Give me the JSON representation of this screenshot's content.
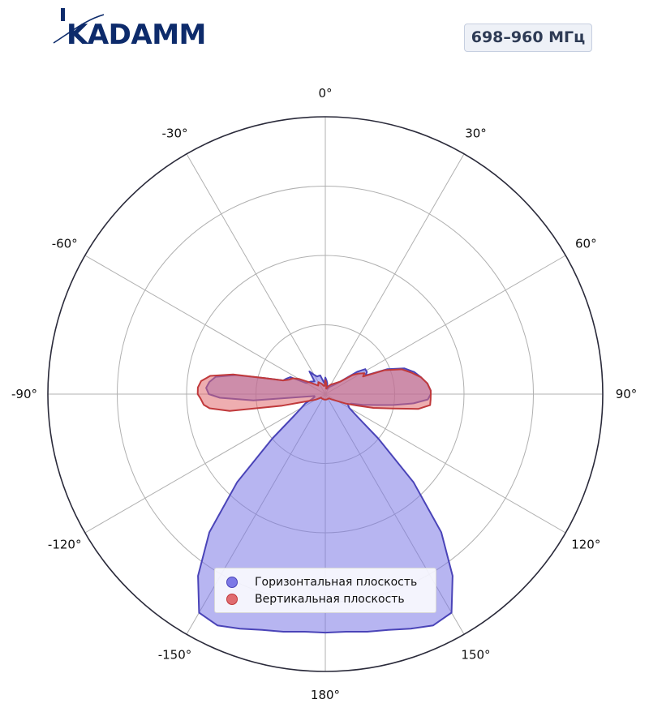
{
  "brand": {
    "logo_text": "KADAMM"
  },
  "badge": {
    "frequency": "698–960 МГц"
  },
  "chart_data": {
    "type": "polar",
    "angle_unit": "deg",
    "zero_location": "top",
    "direction": "clockwise",
    "theta_range": [
      -180,
      180
    ],
    "r_range": [
      0,
      1
    ],
    "r_ticks_labeled": false,
    "grid": true,
    "theta_tick_labels": [
      "0°",
      "30°",
      "60°",
      "90°",
      "120°",
      "150°",
      "180°",
      "-150°",
      "-120°",
      "-90°",
      "-60°",
      "-30°"
    ],
    "legend_position": "lower-center",
    "series": [
      {
        "name": "Горизонтальная плоскость",
        "color": "#4a44b8",
        "fill": "#7c78e6",
        "points": [
          [
            0,
            0.06
          ],
          [
            5,
            0.05
          ],
          [
            10,
            0.04
          ],
          [
            20,
            0.02
          ],
          [
            30,
            0.03
          ],
          [
            40,
            0.04
          ],
          [
            50,
            0.07
          ],
          [
            55,
            0.14
          ],
          [
            58,
            0.17
          ],
          [
            62,
            0.17
          ],
          [
            65,
            0.16
          ],
          [
            68,
            0.24
          ],
          [
            72,
            0.3
          ],
          [
            76,
            0.33
          ],
          [
            80,
            0.35
          ],
          [
            84,
            0.37
          ],
          [
            88,
            0.38
          ],
          [
            90,
            0.38
          ],
          [
            93,
            0.37
          ],
          [
            96,
            0.32
          ],
          [
            99,
            0.25
          ],
          [
            102,
            0.19
          ],
          [
            106,
            0.14
          ],
          [
            110,
            0.1
          ],
          [
            115,
            0.09
          ],
          [
            120,
            0.1
          ],
          [
            125,
            0.14
          ],
          [
            130,
            0.25
          ],
          [
            135,
            0.45
          ],
          [
            140,
            0.65
          ],
          [
            145,
            0.8
          ],
          [
            150,
            0.91
          ],
          [
            155,
            0.92
          ],
          [
            160,
            0.9
          ],
          [
            165,
            0.88
          ],
          [
            170,
            0.87
          ],
          [
            175,
            0.86
          ],
          [
            180,
            0.86
          ],
          [
            -175,
            0.86
          ],
          [
            -170,
            0.87
          ],
          [
            -165,
            0.88
          ],
          [
            -160,
            0.9
          ],
          [
            -155,
            0.92
          ],
          [
            -150,
            0.91
          ],
          [
            -145,
            0.8
          ],
          [
            -140,
            0.65
          ],
          [
            -135,
            0.45
          ],
          [
            -130,
            0.25
          ],
          [
            -125,
            0.14
          ],
          [
            -120,
            0.1
          ],
          [
            -115,
            0.08
          ],
          [
            -110,
            0.05
          ],
          [
            -105,
            0.04
          ],
          [
            -100,
            0.04
          ],
          [
            -95,
            0.26
          ],
          [
            -92,
            0.38
          ],
          [
            -90,
            0.42
          ],
          [
            -87,
            0.43
          ],
          [
            -84,
            0.42
          ],
          [
            -81,
            0.4
          ],
          [
            -78,
            0.33
          ],
          [
            -75,
            0.22
          ],
          [
            -72,
            0.16
          ],
          [
            -68,
            0.15
          ],
          [
            -64,
            0.14
          ],
          [
            -60,
            0.08
          ],
          [
            -50,
            0.07
          ],
          [
            -40,
            0.06
          ],
          [
            -35,
            0.1
          ],
          [
            -30,
            0.08
          ],
          [
            -25,
            0.07
          ],
          [
            -20,
            0.07
          ],
          [
            -15,
            0.07
          ],
          [
            -10,
            0.05
          ],
          [
            -5,
            0.04
          ]
        ]
      },
      {
        "name": "Вертикальная плоскость",
        "color": "#c0393b",
        "fill": "#e06c70",
        "points": [
          [
            0,
            0.05
          ],
          [
            5,
            0.04
          ],
          [
            10,
            0.02
          ],
          [
            20,
            0.03
          ],
          [
            30,
            0.04
          ],
          [
            40,
            0.05
          ],
          [
            50,
            0.07
          ],
          [
            55,
            0.12
          ],
          [
            58,
            0.14
          ],
          [
            62,
            0.16
          ],
          [
            65,
            0.15
          ],
          [
            68,
            0.23
          ],
          [
            72,
            0.29
          ],
          [
            76,
            0.32
          ],
          [
            80,
            0.35
          ],
          [
            84,
            0.37
          ],
          [
            88,
            0.38
          ],
          [
            90,
            0.38
          ],
          [
            93,
            0.38
          ],
          [
            96,
            0.38
          ],
          [
            99,
            0.34
          ],
          [
            102,
            0.25
          ],
          [
            106,
            0.18
          ],
          [
            110,
            0.12
          ],
          [
            115,
            0.08
          ],
          [
            120,
            0.05
          ],
          [
            130,
            0.03
          ],
          [
            140,
            0.02
          ],
          [
            150,
            0.02
          ],
          [
            160,
            0.02
          ],
          [
            170,
            0.02
          ],
          [
            180,
            0.02
          ],
          [
            -170,
            0.02
          ],
          [
            -160,
            0.02
          ],
          [
            -150,
            0.02
          ],
          [
            -140,
            0.02
          ],
          [
            -130,
            0.02
          ],
          [
            -120,
            0.04
          ],
          [
            -110,
            0.08
          ],
          [
            -105,
            0.16
          ],
          [
            -100,
            0.35
          ],
          [
            -97,
            0.42
          ],
          [
            -95,
            0.44
          ],
          [
            -92,
            0.45
          ],
          [
            -90,
            0.46
          ],
          [
            -87,
            0.46
          ],
          [
            -84,
            0.45
          ],
          [
            -81,
            0.42
          ],
          [
            -78,
            0.34
          ],
          [
            -75,
            0.22
          ],
          [
            -72,
            0.16
          ],
          [
            -68,
            0.14
          ],
          [
            -64,
            0.13
          ],
          [
            -60,
            0.11
          ],
          [
            -50,
            0.06
          ],
          [
            -40,
            0.04
          ],
          [
            -30,
            0.05
          ],
          [
            -20,
            0.04
          ],
          [
            -10,
            0.03
          ],
          [
            -5,
            0.03
          ]
        ]
      }
    ]
  }
}
